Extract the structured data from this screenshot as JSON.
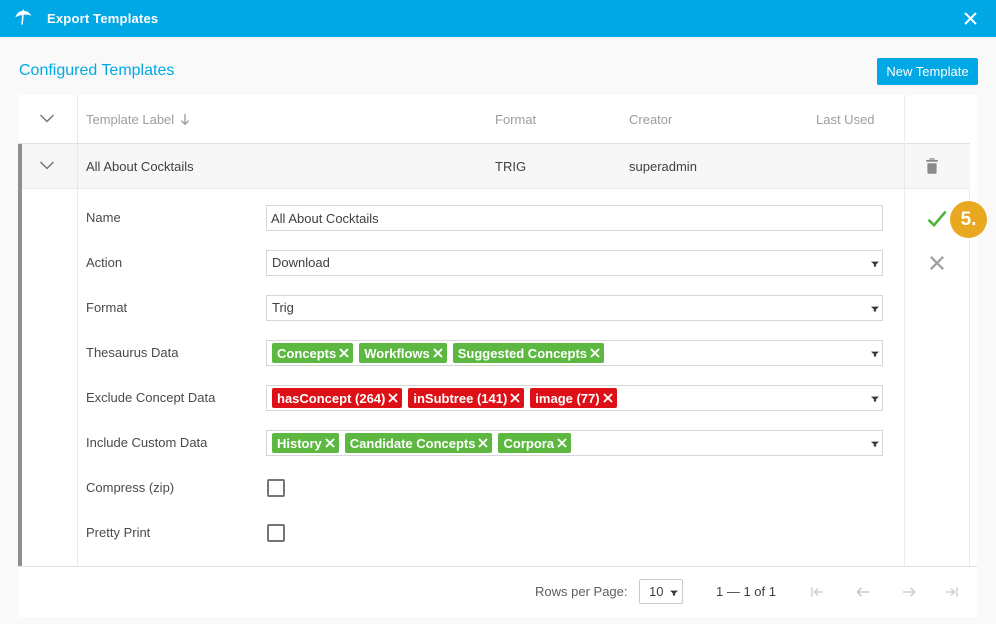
{
  "colors": {
    "accent": "#00a8e6",
    "tag_green": "#5cb840",
    "tag_red": "#dc1016",
    "check_green": "#4fb53a",
    "badge_orange": "#e8a81f"
  },
  "titlebar": {
    "title": "Export Templates",
    "logo_icon": "umbrella-icon",
    "close_icon": "close-icon"
  },
  "toolbar": {
    "heading": "Configured Templates",
    "new_template_label": "New Template"
  },
  "table": {
    "headers": {
      "label": "Template Label",
      "format": "Format",
      "creator": "Creator",
      "last_used": "Last Used"
    },
    "sort": {
      "column": "Template Label",
      "direction": "descending"
    },
    "row": {
      "label": "All About Cocktails",
      "format": "TRIG",
      "creator": "superadmin",
      "last_used": "",
      "expanded": true
    }
  },
  "form": {
    "name": {
      "label": "Name",
      "value": "All About Cocktails"
    },
    "action": {
      "label": "Action",
      "value": "Download"
    },
    "format": {
      "label": "Format",
      "value": "Trig"
    },
    "thesaurus": {
      "label": "Thesaurus Data",
      "tag_color": "green",
      "tags": [
        "Concepts",
        "Workflows",
        "Suggested Concepts"
      ]
    },
    "exclude": {
      "label": "Exclude Concept Data",
      "tag_color": "red",
      "tags": [
        "hasConcept (264)",
        "inSubtree (141)",
        "image (77)"
      ]
    },
    "include": {
      "label": "Include Custom Data",
      "tag_color": "green",
      "tags": [
        "History",
        "Candidate Concepts",
        "Corpora"
      ]
    },
    "compress": {
      "label": "Compress (zip)",
      "checked": false
    },
    "pretty": {
      "label": "Pretty Print",
      "checked": false
    }
  },
  "footer": {
    "rows_per_page_label": "Rows per Page:",
    "rows_per_page_value": "10",
    "range": "1 — 1 of 1"
  },
  "annotation": {
    "step": "5."
  }
}
